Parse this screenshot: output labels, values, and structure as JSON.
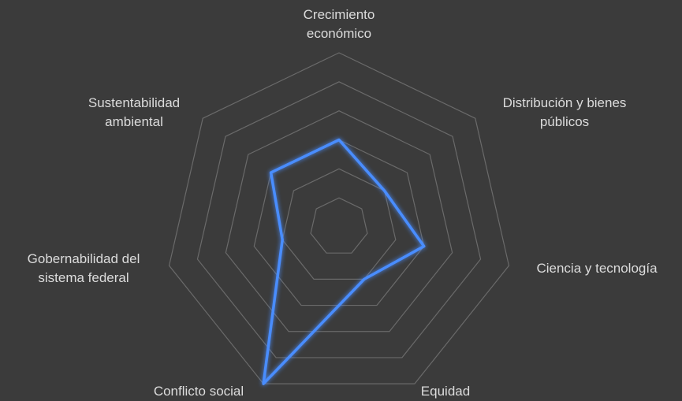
{
  "chart_data": {
    "type": "radar",
    "categories": [
      "Crecimiento económico",
      "Distribución y bienes públicos",
      "Ciencia y tecnología",
      "Equidad",
      "Conflicto social",
      "Gobernabilidad del sistema federal",
      "Sustentabilidad ambiental"
    ],
    "series": [
      {
        "color": "#4a8dff",
        "values": [
          3,
          2,
          3,
          2,
          6,
          2,
          3
        ]
      }
    ],
    "rlim": [
      0,
      6
    ],
    "rticks": [
      1,
      2,
      3,
      4,
      5,
      6
    ],
    "grid": true
  }
}
